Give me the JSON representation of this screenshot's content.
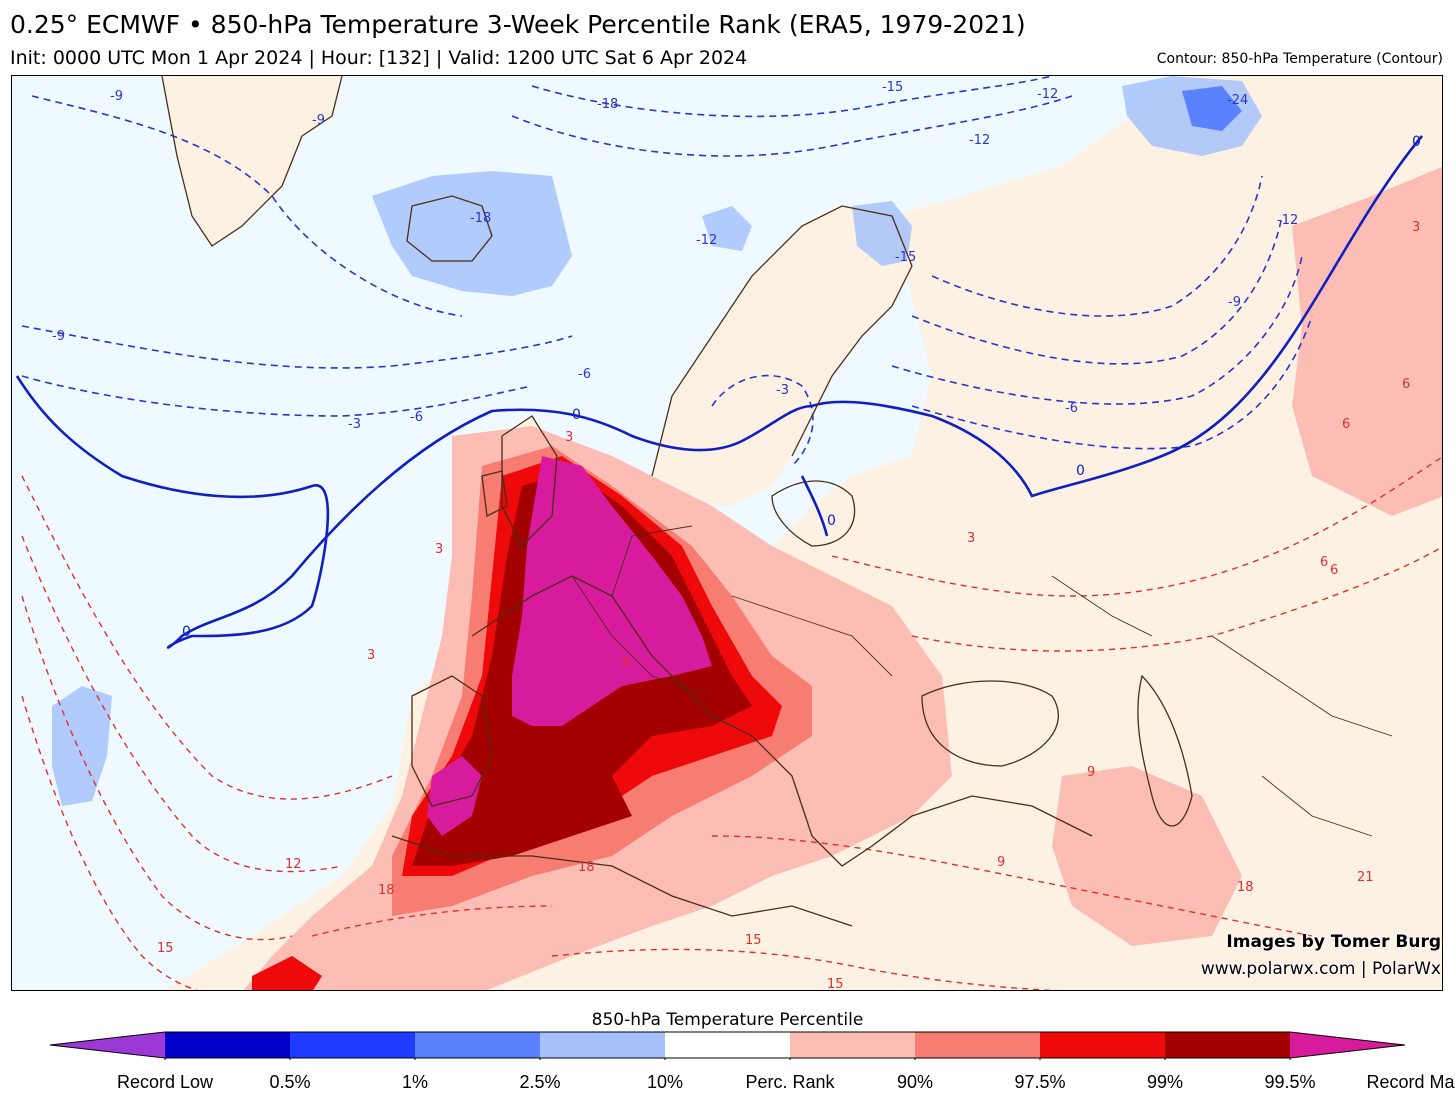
{
  "header": {
    "title": "0.25° ECMWF • 850-hPa Temperature 3-Week Percentile Rank (ERA5, 1979-2021)",
    "subtitle": "Init: 0000 UTC Mon 1 Apr 2024 | Hour: [132] | Valid: 1200 UTC Sat 6 Apr 2024",
    "contour_note": "Contour: 850-hPa Temperature (Contour)"
  },
  "credits": {
    "line1": "Images by Tomer Burg",
    "line2": "www.polarwx.com | PolarWx"
  },
  "colorbar": {
    "title": "850-hPa Temperature Percentile",
    "labels": [
      "Record Low",
      "0.5%",
      "1%",
      "2.5%",
      "10%",
      "Perc. Rank",
      "90%",
      "97.5%",
      "99%",
      "99.5%",
      "Record Max"
    ],
    "colors": [
      "#9b38d6",
      "#0000c8",
      "#1e3cff",
      "#5a82ff",
      "#a6c2fb",
      "#ffffff",
      "#fcbdb5",
      "#f77d73",
      "#ee0a0a",
      "#a50000",
      "#d81b9d"
    ]
  },
  "colors": {
    "ocean_background": "#eefaff",
    "land_neutral": "#fdf1e4",
    "contour_cold": "#2b35c9",
    "contour_warm": "#e0302e",
    "zero_line": "#1020c0",
    "coastline": "#4a2e16"
  },
  "contour_labels": {
    "cold": [
      "-9",
      "-9",
      "-18",
      "-15",
      "-12",
      "-18",
      "-12",
      "-15",
      "-12",
      "-24",
      "-12",
      "-9",
      "-6",
      "-6",
      "-3",
      "-3",
      "-9",
      "-6"
    ],
    "zero": [
      "0",
      "0",
      "0",
      "0",
      "0"
    ],
    "warm": [
      "3",
      "3",
      "3",
      "3",
      "6",
      "6",
      "3",
      "6",
      "12",
      "15",
      "18",
      "18",
      "15",
      "15",
      "9",
      "9",
      "18",
      "21",
      "3",
      "6"
    ]
  }
}
